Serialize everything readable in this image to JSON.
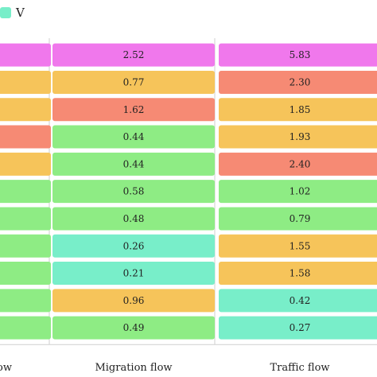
{
  "legend": {
    "items": [
      {
        "label": "V",
        "color": "#78eec9"
      }
    ]
  },
  "colors": {
    "magenta": "#f078ec",
    "orange": "#f6c45a",
    "red": "#f68a74",
    "green": "#8eec84",
    "teal": "#78eec9"
  },
  "chart_data": {
    "type": "table",
    "columns": [
      {
        "name": "",
        "values": [
          "",
          "",
          "",
          "",
          "",
          "",
          "",
          "",
          "",
          "",
          ""
        ],
        "colors": [
          "magenta",
          "orange",
          "orange",
          "red",
          "orange",
          "green",
          "green",
          "green",
          "green",
          "green",
          "green"
        ],
        "footer": "ow"
      },
      {
        "name": "Migration flow",
        "values": [
          "2.52",
          "0.77",
          "1.62",
          "0.44",
          "0.44",
          "0.58",
          "0.48",
          "0.26",
          "0.21",
          "0.96",
          "0.49"
        ],
        "colors": [
          "magenta",
          "orange",
          "red",
          "green",
          "green",
          "green",
          "green",
          "teal",
          "teal",
          "orange",
          "green"
        ],
        "footer": "Migration flow"
      },
      {
        "name": "Traffic flow",
        "values": [
          "5.83",
          "2.30",
          "1.85",
          "1.93",
          "2.40",
          "1.02",
          "0.79",
          "1.55",
          "1.58",
          "0.42",
          "0.27"
        ],
        "colors": [
          "magenta",
          "red",
          "orange",
          "orange",
          "red",
          "green",
          "green",
          "orange",
          "orange",
          "teal",
          "teal"
        ],
        "footer": "Traffic flow"
      }
    ]
  }
}
